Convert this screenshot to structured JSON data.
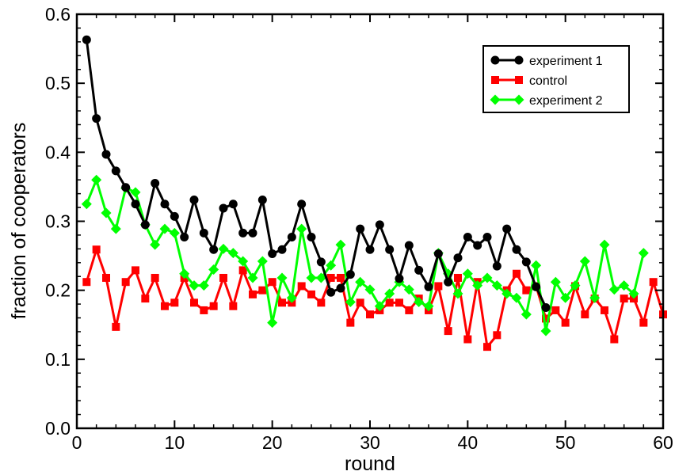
{
  "chart_data": {
    "type": "line",
    "title": "",
    "xlabel": "round",
    "ylabel": "fraction of cooperators",
    "xlim": [
      0,
      60
    ],
    "ylim": [
      0,
      0.6
    ],
    "x_ticks": [
      0,
      10,
      20,
      30,
      40,
      50,
      60
    ],
    "y_ticks": [
      "0.0",
      "0.1",
      "0.2",
      "0.3",
      "0.4",
      "0.5",
      "0.6"
    ],
    "grid": false,
    "legend_position": "top-right",
    "series": [
      {
        "name": "experiment 1",
        "color": "#000000",
        "marker": "circle",
        "x": [
          1,
          2,
          3,
          4,
          5,
          6,
          7,
          8,
          9,
          10,
          11,
          12,
          13,
          14,
          15,
          16,
          17,
          18,
          19,
          20,
          21,
          22,
          23,
          24,
          25,
          26,
          27,
          28,
          29,
          30,
          31,
          32,
          33,
          34,
          35,
          36,
          37,
          38,
          39,
          40,
          41,
          42,
          43,
          44,
          45,
          46,
          47,
          48
        ],
        "values": [
          0.563,
          0.449,
          0.397,
          0.373,
          0.349,
          0.325,
          0.295,
          0.355,
          0.325,
          0.307,
          0.277,
          0.331,
          0.283,
          0.259,
          0.319,
          0.325,
          0.283,
          0.283,
          0.331,
          0.253,
          0.259,
          0.277,
          0.325,
          0.277,
          0.241,
          0.197,
          0.203,
          0.223,
          0.289,
          0.259,
          0.295,
          0.259,
          0.217,
          0.265,
          0.229,
          0.205,
          0.253,
          0.212,
          0.247,
          0.277,
          0.265,
          0.277,
          0.235,
          0.289,
          0.259,
          0.241,
          0.205,
          0.175
        ]
      },
      {
        "name": "control",
        "color": "#ff0000",
        "marker": "square",
        "x": [
          1,
          2,
          3,
          4,
          5,
          6,
          7,
          8,
          9,
          10,
          11,
          12,
          13,
          14,
          15,
          16,
          17,
          18,
          19,
          20,
          21,
          22,
          23,
          24,
          25,
          26,
          27,
          28,
          29,
          30,
          31,
          32,
          33,
          34,
          35,
          36,
          37,
          38,
          39,
          40,
          41,
          42,
          43,
          44,
          45,
          46,
          47,
          48,
          49,
          50,
          51,
          52,
          53,
          54,
          55,
          56,
          57,
          58,
          59,
          60
        ],
        "values": [
          0.212,
          0.259,
          0.218,
          0.147,
          0.212,
          0.229,
          0.188,
          0.218,
          0.177,
          0.182,
          0.218,
          0.182,
          0.171,
          0.177,
          0.218,
          0.177,
          0.229,
          0.194,
          0.2,
          0.212,
          0.182,
          0.182,
          0.206,
          0.194,
          0.182,
          0.218,
          0.218,
          0.153,
          0.182,
          0.165,
          0.171,
          0.182,
          0.182,
          0.171,
          0.188,
          0.171,
          0.206,
          0.141,
          0.218,
          0.129,
          0.212,
          0.118,
          0.135,
          0.2,
          0.224,
          0.2,
          0.206,
          0.159,
          0.171,
          0.153,
          0.206,
          0.165,
          0.188,
          0.171,
          0.129,
          0.188,
          0.188,
          0.153,
          0.212,
          0.165
        ]
      },
      {
        "name": "experiment 2",
        "color": "#00ff00",
        "marker": "diamond",
        "x": [
          1,
          2,
          3,
          4,
          5,
          6,
          7,
          8,
          9,
          10,
          11,
          12,
          13,
          14,
          15,
          16,
          17,
          18,
          19,
          20,
          21,
          22,
          23,
          24,
          25,
          26,
          27,
          28,
          29,
          30,
          31,
          32,
          33,
          34,
          35,
          36,
          37,
          38,
          39,
          40,
          41,
          42,
          43,
          44,
          45,
          46,
          47,
          48,
          49,
          50,
          51,
          52,
          53,
          54,
          55,
          56,
          57,
          58
        ],
        "values": [
          0.325,
          0.36,
          0.312,
          0.289,
          0.348,
          0.342,
          0.295,
          0.266,
          0.289,
          0.283,
          0.224,
          0.207,
          0.207,
          0.23,
          0.26,
          0.254,
          0.242,
          0.218,
          0.242,
          0.153,
          0.218,
          0.189,
          0.289,
          0.218,
          0.218,
          0.236,
          0.266,
          0.183,
          0.212,
          0.201,
          0.177,
          0.195,
          0.212,
          0.201,
          0.183,
          0.177,
          0.254,
          0.224,
          0.195,
          0.224,
          0.207,
          0.218,
          0.207,
          0.195,
          0.189,
          0.165,
          0.236,
          0.141,
          0.212,
          0.189,
          0.207,
          0.242,
          0.189,
          0.266,
          0.201,
          0.207,
          0.195,
          0.254
        ]
      }
    ]
  }
}
